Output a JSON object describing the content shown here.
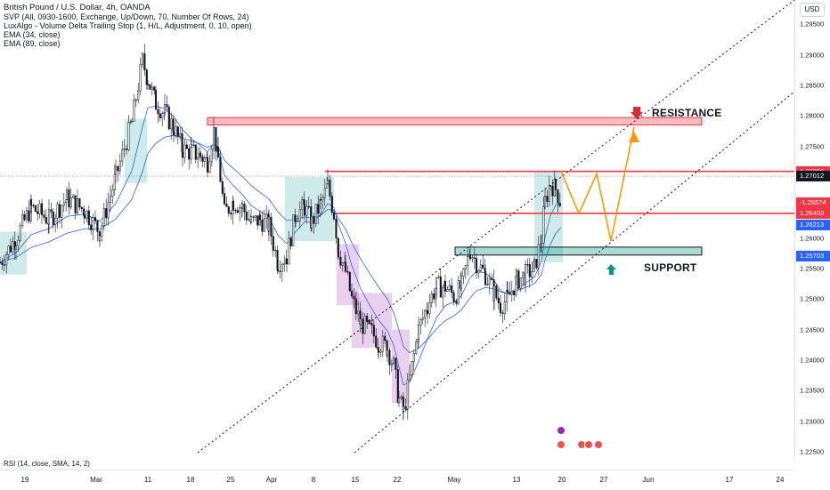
{
  "legend": {
    "title": "British Pound / U.S. Dollar, 4h, OANDA",
    "indicators": [
      "SVP (All, 0930-1600, Exchange, Up/Down, 70, Number Of Rows, 24)",
      "LuxAlgo - Volume Delta Trailing Stop (1, H/L, Adjustment, 0, 10, open)",
      "EMA (34, close)",
      "EMA (89, close)"
    ]
  },
  "currency": "USD",
  "y_axis_labels": [
    "1.29500",
    "1.29000",
    "1.28500",
    "1.28000",
    "1.27500",
    "1.27000",
    "1.26500",
    "1.26000",
    "1.25500",
    "1.25000",
    "1.24500",
    "1.24000",
    "1.23500",
    "1.23000",
    "1.22500"
  ],
  "price_badges": [
    {
      "text": "1.27090",
      "color": "#f23645"
    },
    {
      "text": "1.27012",
      "color": "#131722"
    },
    {
      "text": "-1.26574",
      "color": "#f23645"
    },
    {
      "text": "1.26403",
      "color": "#f23645"
    },
    {
      "text": "1.26213",
      "color": "#2962ff"
    },
    {
      "text": "1.25703",
      "color": "#2962ff"
    }
  ],
  "x_axis_labels": [
    "19",
    "Mar",
    "11",
    "18",
    "25",
    "Apr",
    "8",
    "15",
    "22",
    "May",
    "13",
    "20",
    "27",
    "Jun",
    "17",
    "24"
  ],
  "annotations": {
    "resistance": "RESISTANCE",
    "support": "SUPPORT"
  },
  "rsi_label": "RSI (14, close, SMA, 14, 2)",
  "colors": {
    "up": "#26a69a",
    "down": "#ef5350",
    "candle": "#131722",
    "resistance_zone": "#f23645",
    "support_zone": "#089981",
    "projection": "#ff9800",
    "channel": "#131722",
    "ema34": "#2962ff",
    "ema89": "#2962ff"
  },
  "chart_data": {
    "type": "candlestick",
    "symbol": "GBP/USD",
    "timeframe": "4h",
    "ylim": [
      1.225,
      1.2975
    ],
    "levels": {
      "resistance_zone": [
        1.2785,
        1.2797
      ],
      "resistance_line": 1.2709,
      "current_price": 1.27012,
      "mid_resistance": 1.26403,
      "support_zone": [
        1.2572,
        1.2585
      ]
    },
    "close_path": [
      [
        0,
        1.256
      ],
      [
        18,
        1.26
      ],
      [
        35,
        1.265
      ],
      [
        55,
        1.263
      ],
      [
        75,
        1.2665
      ],
      [
        95,
        1.2645
      ],
      [
        112,
        1.261
      ],
      [
        130,
        1.27
      ],
      [
        148,
        1.279
      ],
      [
        160,
        1.289
      ],
      [
        166,
        1.286
      ],
      [
        175,
        1.282
      ],
      [
        185,
        1.2805
      ],
      [
        195,
        1.278
      ],
      [
        205,
        1.2745
      ],
      [
        215,
        1.274
      ],
      [
        225,
        1.2735
      ],
      [
        233,
        1.2725
      ],
      [
        240,
        1.2775
      ],
      [
        245,
        1.273
      ],
      [
        252,
        1.264
      ],
      [
        262,
        1.266
      ],
      [
        272,
        1.265
      ],
      [
        282,
        1.2625
      ],
      [
        292,
        1.263
      ],
      [
        302,
        1.262
      ],
      [
        312,
        1.256
      ],
      [
        322,
        1.257
      ],
      [
        332,
        1.264
      ],
      [
        342,
        1.265
      ],
      [
        350,
        1.2625
      ],
      [
        360,
        1.2655
      ],
      [
        368,
        1.2685
      ],
      [
        375,
        1.264
      ],
      [
        380,
        1.258
      ],
      [
        388,
        1.2545
      ],
      [
        395,
        1.25
      ],
      [
        405,
        1.246
      ],
      [
        415,
        1.245
      ],
      [
        425,
        1.243
      ],
      [
        435,
        1.242
      ],
      [
        442,
        1.239
      ],
      [
        448,
        1.2335
      ],
      [
        453,
        1.2315
      ],
      [
        460,
        1.237
      ],
      [
        470,
        1.245
      ],
      [
        480,
        1.249
      ],
      [
        490,
        1.252
      ],
      [
        500,
        1.252
      ],
      [
        510,
        1.2505
      ],
      [
        518,
        1.252
      ],
      [
        528,
        1.258
      ],
      [
        535,
        1.256
      ],
      [
        545,
        1.254
      ],
      [
        555,
        1.251
      ],
      [
        562,
        1.249
      ],
      [
        570,
        1.25
      ],
      [
        580,
        1.253
      ],
      [
        590,
        1.254
      ],
      [
        600,
        1.255
      ],
      [
        608,
        1.26
      ],
      [
        612,
        1.266
      ],
      [
        618,
        1.269
      ],
      [
        624,
        1.268
      ],
      [
        630,
        1.2657
      ]
    ],
    "projection": [
      [
        630,
        1.2709
      ],
      [
        650,
        1.264
      ],
      [
        670,
        1.2705
      ],
      [
        686,
        1.2595
      ],
      [
        712,
        1.2782
      ]
    ]
  }
}
